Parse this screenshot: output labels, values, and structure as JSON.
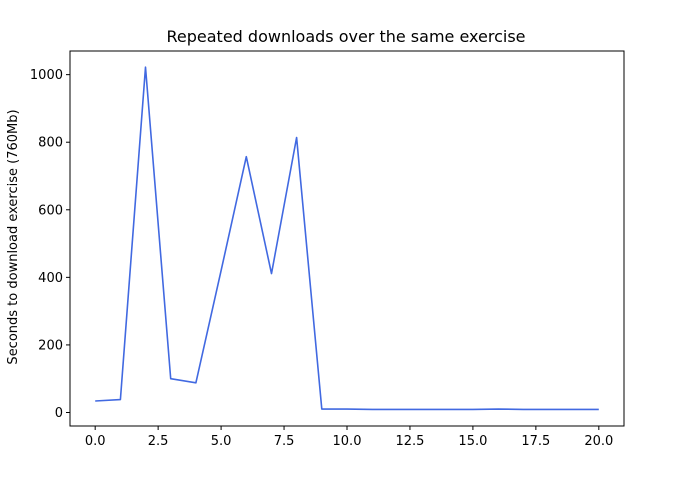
{
  "chart_data": {
    "type": "line",
    "title": "Repeated downloads over the same exercise",
    "xlabel": "",
    "ylabel": "Seconds to download exercise (760Mb)",
    "xlim": [
      -1,
      21
    ],
    "ylim": [
      -40,
      1070
    ],
    "xticks": [
      0.0,
      2.5,
      5.0,
      7.5,
      10.0,
      12.5,
      15.0,
      17.5,
      20.0
    ],
    "xtick_labels": [
      "0.0",
      "2.5",
      "5.0",
      "7.5",
      "10.0",
      "12.5",
      "15.0",
      "17.5",
      "20.0"
    ],
    "yticks": [
      0,
      200,
      400,
      600,
      800,
      1000
    ],
    "ytick_labels": [
      "0",
      "200",
      "400",
      "600",
      "800",
      "1000"
    ],
    "grid": false,
    "series": [
      {
        "color": "#4169e1",
        "x": [
          0,
          1,
          2,
          3,
          4,
          5,
          6,
          7,
          8,
          9,
          10,
          11,
          12,
          13,
          14,
          15,
          16,
          17,
          18,
          19,
          20
        ],
        "y": [
          34,
          38,
          1022,
          100,
          88,
          420,
          757,
          411,
          814,
          10,
          10,
          9,
          9,
          9,
          9,
          9,
          10,
          9,
          9,
          9,
          9
        ]
      }
    ]
  }
}
